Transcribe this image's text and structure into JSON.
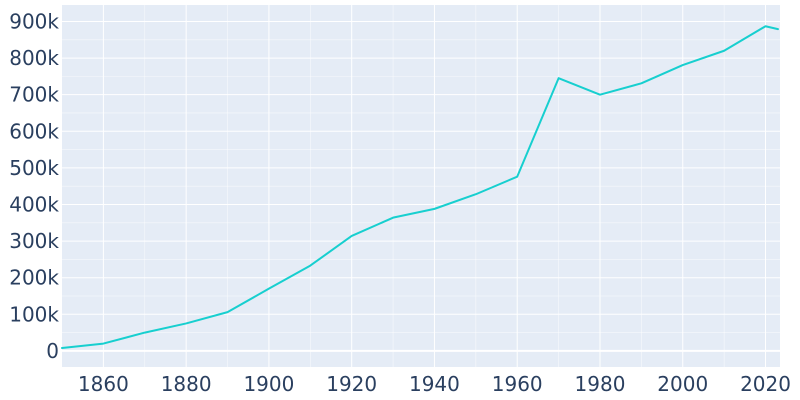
{
  "chart_data": {
    "type": "line",
    "title": "",
    "xlabel": "",
    "ylabel": "",
    "x": [
      1850,
      1860,
      1870,
      1880,
      1890,
      1900,
      1910,
      1920,
      1930,
      1940,
      1950,
      1960,
      1970,
      1980,
      1990,
      2000,
      2010,
      2020,
      2023
    ],
    "series": [
      {
        "values": [
          8000,
          20000,
          50000,
          75000,
          106000,
          170000,
          233000,
          314000,
          364000,
          388000,
          428000,
          476000,
          745000,
          700000,
          731000,
          781000,
          820000,
          887000,
          879000
        ]
      }
    ],
    "xlim": [
      1850,
      2023.5
    ],
    "ylim": [
      -44000,
      945000
    ],
    "x_ticks": [
      1860,
      1880,
      1900,
      1920,
      1940,
      1960,
      1980,
      2000,
      2020
    ],
    "x_tick_labels": [
      "1860",
      "1880",
      "1900",
      "1920",
      "1940",
      "1960",
      "1980",
      "2000",
      "2020"
    ],
    "y_ticks": [
      0,
      100000,
      200000,
      300000,
      400000,
      500000,
      600000,
      700000,
      800000,
      900000
    ],
    "y_tick_labels": [
      "0",
      "100k",
      "200k",
      "300k",
      "400k",
      "500k",
      "600k",
      "700k",
      "800k",
      "900k"
    ],
    "grid": true,
    "legend": "none",
    "colors": {
      "line": "#17cfcf",
      "plot_background": "#e5ecf6",
      "grid": "#ffffff",
      "tick_text": "#2a3f5f"
    }
  }
}
